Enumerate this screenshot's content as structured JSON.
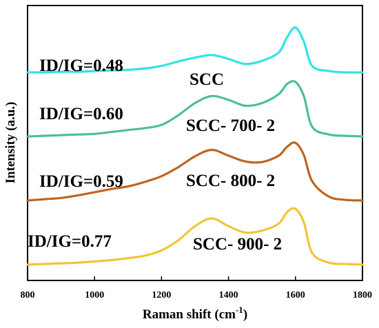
{
  "chart_data": {
    "type": "line",
    "title": "",
    "xlabel": "Raman shift (cm",
    "xlabel_sup": "-1",
    "xlabel_close": ")",
    "ylabel": "Intensity (a.u.)",
    "xlim": [
      800,
      1800
    ],
    "x_ticks": [
      "800",
      "1000",
      "1200",
      "1400",
      "1600",
      "1800"
    ],
    "y_ticks": [],
    "grid": false,
    "legend": "none",
    "offset_step": 1,
    "x": [
      800,
      850,
      900,
      950,
      1000,
      1050,
      1100,
      1150,
      1200,
      1250,
      1300,
      1350,
      1400,
      1450,
      1500,
      1550,
      1575,
      1600,
      1625,
      1650,
      1700,
      1750,
      1800
    ],
    "series": [
      {
        "name": "SCC- 900- 2",
        "color": "#F2C534",
        "offset": 0,
        "id_ig_label": "ID/IG=0.77",
        "values": [
          0.0,
          0.01,
          0.02,
          0.03,
          0.05,
          0.07,
          0.1,
          0.14,
          0.22,
          0.38,
          0.6,
          0.72,
          0.6,
          0.5,
          0.53,
          0.64,
          0.82,
          0.87,
          0.66,
          0.18,
          0.03,
          0.01,
          0.0
        ]
      },
      {
        "name": "SCC- 800- 2",
        "color": "#C0631E",
        "offset": 1,
        "id_ig_label": "ID/IG=0.59",
        "values": [
          0.0,
          0.02,
          0.04,
          0.08,
          0.13,
          0.18,
          0.22,
          0.29,
          0.38,
          0.52,
          0.69,
          0.79,
          0.7,
          0.61,
          0.6,
          0.7,
          0.84,
          0.9,
          0.71,
          0.3,
          0.06,
          0.01,
          0.0
        ]
      },
      {
        "name": "SCC- 700- 2",
        "color": "#4DBF98",
        "offset": 2,
        "id_ig_label": "ID/IG=0.60",
        "values": [
          0.0,
          0.01,
          0.02,
          0.03,
          0.04,
          0.07,
          0.1,
          0.13,
          0.18,
          0.33,
          0.52,
          0.63,
          0.57,
          0.48,
          0.52,
          0.66,
          0.82,
          0.85,
          0.63,
          0.15,
          0.03,
          0.01,
          0.0
        ]
      },
      {
        "name": "SCC",
        "color": "#33E3E3",
        "offset": 3,
        "id_ig_label": "ID/IG=0.48",
        "values": [
          0.0,
          0.0,
          0.01,
          0.01,
          0.02,
          0.03,
          0.04,
          0.06,
          0.1,
          0.17,
          0.23,
          0.27,
          0.21,
          0.13,
          0.18,
          0.31,
          0.55,
          0.7,
          0.48,
          0.1,
          0.02,
          0.0,
          0.0
        ]
      }
    ]
  }
}
